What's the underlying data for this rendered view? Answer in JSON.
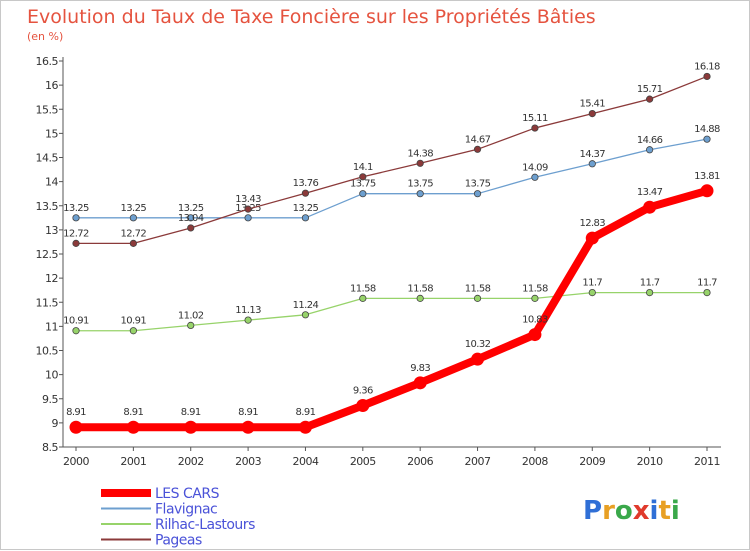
{
  "chart_data": {
    "type": "line",
    "title": "Evolution du Taux de Taxe Foncière sur les Propriétés Bâties",
    "subtitle": "(en %)",
    "x": [
      "2000",
      "2001",
      "2002",
      "2003",
      "2004",
      "2005",
      "2006",
      "2007",
      "2008",
      "2009",
      "2010",
      "2011"
    ],
    "ylim": [
      8.5,
      16.5
    ],
    "yticks": [
      "8.5",
      "9",
      "9.5",
      "10",
      "10.5",
      "11",
      "11.5",
      "12",
      "12.5",
      "13",
      "13.5",
      "14",
      "14.5",
      "15",
      "15.5",
      "16",
      "16.5"
    ],
    "grid": false,
    "legend_position": "bottom-left",
    "series": [
      {
        "name": "LES CARS",
        "color": "#ff0000",
        "values": [
          8.91,
          8.91,
          8.91,
          8.91,
          8.91,
          9.36,
          9.83,
          10.32,
          10.83,
          12.83,
          13.47,
          13.81
        ],
        "labels": [
          "8.91",
          "8.91",
          "8.91",
          "8.91",
          "8.91",
          "9.36",
          "9.83",
          "10.32",
          "10.83",
          "12.83",
          "13.47",
          "13.81"
        ]
      },
      {
        "name": "Flavignac",
        "color": "#6d9fcf",
        "values": [
          13.25,
          13.25,
          13.25,
          13.25,
          13.25,
          13.75,
          13.75,
          13.75,
          14.09,
          14.37,
          14.66,
          14.88
        ],
        "labels": [
          "13.25",
          "13.25",
          "13.25",
          "13.25",
          "13.25",
          "13.75",
          "13.75",
          "13.75",
          "14.09",
          "14.37",
          "14.66",
          "14.88"
        ]
      },
      {
        "name": "Rilhac-Lastours",
        "color": "#97d36a",
        "values": [
          10.91,
          10.91,
          11.02,
          11.13,
          11.24,
          11.58,
          11.58,
          11.58,
          11.58,
          11.7,
          11.7,
          11.7
        ],
        "labels": [
          "10.91",
          "10.91",
          "11.02",
          "11.13",
          "11.24",
          "11.58",
          "11.58",
          "11.58",
          "11.58",
          "11.7",
          "11.7",
          "11.7"
        ]
      },
      {
        "name": "Pageas",
        "color": "#8b3a3a",
        "values": [
          12.72,
          12.72,
          13.04,
          13.43,
          13.76,
          14.1,
          14.38,
          14.67,
          15.11,
          15.41,
          15.71,
          16.18
        ],
        "labels": [
          "12.72",
          "12.72",
          "13.04",
          "13.43",
          "13.76",
          "14.1",
          "14.38",
          "14.67",
          "15.11",
          "15.41",
          "15.71",
          "16.18"
        ]
      }
    ]
  },
  "logo": {
    "text": "Proxiti",
    "letters": [
      {
        "ch": "P",
        "color": "#2f6fd6"
      },
      {
        "ch": "r",
        "color": "#e8a024"
      },
      {
        "ch": "o",
        "color": "#3aa84a"
      },
      {
        "ch": "x",
        "color": "#e03a2c"
      },
      {
        "ch": "i",
        "color": "#2f6fd6"
      },
      {
        "ch": "t",
        "color": "#e8a024"
      },
      {
        "ch": "i",
        "color": "#3aa84a"
      }
    ]
  }
}
